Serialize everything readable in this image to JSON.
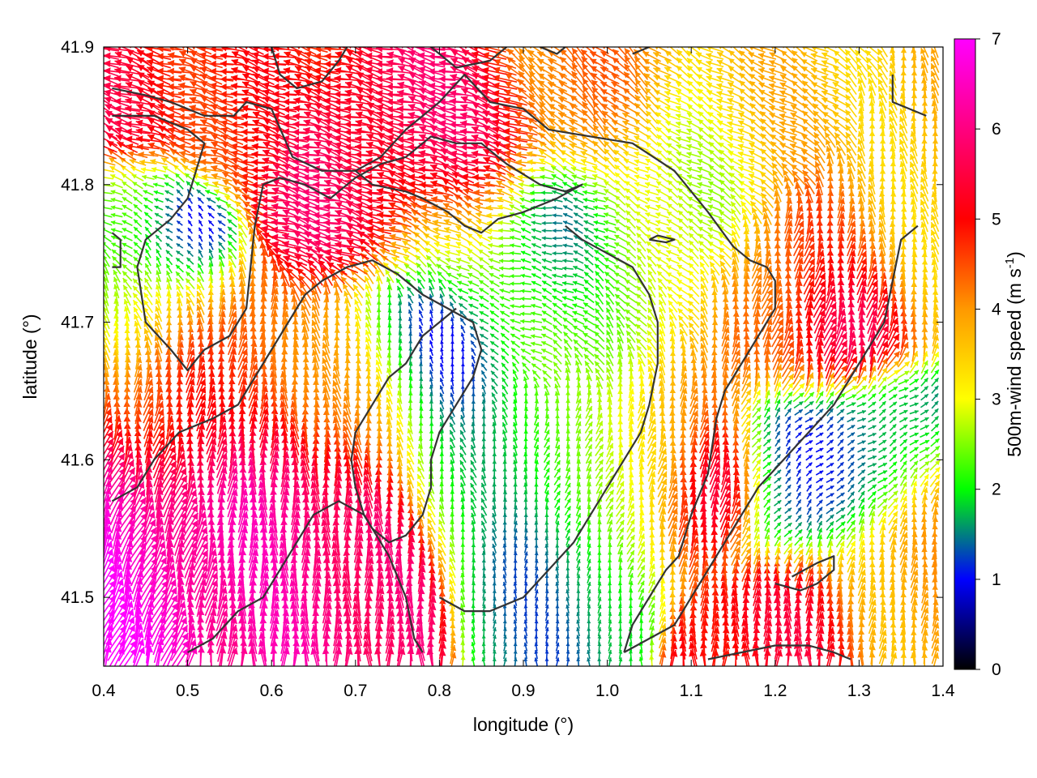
{
  "chart_data": {
    "type": "vector-field",
    "xlabel": "longitude (°)",
    "ylabel": "latitude (°)",
    "xlim": [
      0.4,
      1.4
    ],
    "ylim": [
      41.45,
      41.9
    ],
    "xticks": [
      "0.4",
      "0.5",
      "0.6",
      "0.7",
      "0.8",
      "0.9",
      "1.0",
      "1.1",
      "1.2",
      "1.3",
      "1.4"
    ],
    "yticks": [
      "41.5",
      "41.6",
      "41.7",
      "41.8",
      "41.9"
    ],
    "colorbar": {
      "label": "500m-wind speed (m s",
      "label_superscript": "-1",
      "label_suffix": ")",
      "range": [
        0,
        7
      ],
      "ticks": [
        "0",
        "1",
        "2",
        "3",
        "4",
        "5",
        "6",
        "7"
      ],
      "palette": [
        "#000000",
        "#0000ff",
        "#00ff00",
        "#ffff00",
        "#ff9900",
        "#ff0000",
        "#ff00ff"
      ]
    },
    "wind_field_description": "Gridded 500m wind vectors, colored by speed; arrows point generally northward in the south/east, westward in the north.",
    "contours": [
      [
        [
          0.41,
          41.87
        ],
        [
          0.45,
          41.865
        ],
        [
          0.48,
          41.86
        ],
        [
          0.52,
          41.85
        ],
        [
          0.555,
          41.85
        ],
        [
          0.57,
          41.86
        ],
        [
          0.6,
          41.855
        ],
        [
          0.625,
          41.82
        ],
        [
          0.66,
          41.81
        ],
        [
          0.7,
          41.81
        ],
        [
          0.73,
          41.82
        ],
        [
          0.76,
          41.84
        ],
        [
          0.8,
          41.86
        ],
        [
          0.83,
          41.88
        ],
        [
          0.86,
          41.86
        ],
        [
          0.9,
          41.855
        ],
        [
          0.93,
          41.84
        ],
        [
          0.98,
          41.835
        ],
        [
          1.03,
          41.83
        ],
        [
          1.08,
          41.81
        ],
        [
          1.12,
          41.78
        ],
        [
          1.15,
          41.755
        ],
        [
          1.17,
          41.745
        ],
        [
          1.19,
          41.74
        ],
        [
          1.2,
          41.73
        ],
        [
          1.2,
          41.71
        ],
        [
          1.18,
          41.69
        ],
        [
          1.16,
          41.67
        ],
        [
          1.14,
          41.65
        ],
        [
          1.13,
          41.63
        ],
        [
          1.12,
          41.59
        ],
        [
          1.1,
          41.56
        ],
        [
          1.085,
          41.53
        ],
        [
          1.07,
          41.52
        ],
        [
          1.05,
          41.5
        ],
        [
          1.03,
          41.48
        ],
        [
          1.02,
          41.46
        ]
      ],
      [
        [
          0.41,
          41.85
        ],
        [
          0.46,
          41.85
        ],
        [
          0.5,
          41.84
        ],
        [
          0.52,
          41.83
        ],
        [
          0.5,
          41.79
        ],
        [
          0.48,
          41.775
        ],
        [
          0.45,
          41.76
        ],
        [
          0.44,
          41.74
        ],
        [
          0.45,
          41.7
        ],
        [
          0.48,
          41.68
        ],
        [
          0.5,
          41.665
        ],
        [
          0.52,
          41.68
        ],
        [
          0.55,
          41.69
        ],
        [
          0.57,
          41.71
        ],
        [
          0.575,
          41.74
        ],
        [
          0.58,
          41.77
        ],
        [
          0.59,
          41.8
        ],
        [
          0.61,
          41.805
        ],
        [
          0.64,
          41.8
        ],
        [
          0.67,
          41.79
        ],
        [
          0.7,
          41.805
        ],
        [
          0.73,
          41.815
        ],
        [
          0.76,
          41.82
        ],
        [
          0.79,
          41.835
        ],
        [
          0.82,
          41.83
        ],
        [
          0.85,
          41.83
        ],
        [
          0.88,
          41.815
        ],
        [
          0.92,
          41.8
        ],
        [
          0.95,
          41.795
        ],
        [
          0.97,
          41.8
        ],
        [
          0.94,
          41.79
        ],
        [
          0.9,
          41.78
        ],
        [
          0.87,
          41.775
        ],
        [
          0.85,
          41.765
        ],
        [
          0.83,
          41.77
        ],
        [
          0.81,
          41.78
        ],
        [
          0.78,
          41.79
        ],
        [
          0.76,
          41.795
        ],
        [
          0.72,
          41.8
        ],
        [
          0.7,
          41.81
        ]
      ],
      [
        [
          0.41,
          41.57
        ],
        [
          0.44,
          41.58
        ],
        [
          0.46,
          41.6
        ],
        [
          0.49,
          41.62
        ],
        [
          0.53,
          41.63
        ],
        [
          0.56,
          41.64
        ],
        [
          0.58,
          41.66
        ],
        [
          0.6,
          41.68
        ],
        [
          0.62,
          41.7
        ],
        [
          0.64,
          41.72
        ],
        [
          0.66,
          41.73
        ],
        [
          0.69,
          41.74
        ],
        [
          0.72,
          41.745
        ],
        [
          0.75,
          41.735
        ],
        [
          0.78,
          41.72
        ],
        [
          0.81,
          41.71
        ],
        [
          0.84,
          41.7
        ],
        [
          0.85,
          41.68
        ],
        [
          0.84,
          41.66
        ],
        [
          0.82,
          41.64
        ],
        [
          0.8,
          41.62
        ],
        [
          0.79,
          41.6
        ],
        [
          0.79,
          41.58
        ],
        [
          0.78,
          41.56
        ],
        [
          0.76,
          41.545
        ],
        [
          0.74,
          41.54
        ],
        [
          0.72,
          41.55
        ],
        [
          0.71,
          41.56
        ],
        [
          0.7,
          41.58
        ],
        [
          0.695,
          41.6
        ],
        [
          0.7,
          41.62
        ],
        [
          0.72,
          41.64
        ],
        [
          0.74,
          41.66
        ],
        [
          0.76,
          41.67
        ],
        [
          0.78,
          41.69
        ],
        [
          0.8,
          41.7
        ],
        [
          0.82,
          41.71
        ]
      ],
      [
        [
          0.8,
          41.5
        ],
        [
          0.83,
          41.49
        ],
        [
          0.86,
          41.49
        ],
        [
          0.9,
          41.5
        ],
        [
          0.93,
          41.52
        ],
        [
          0.96,
          41.54
        ],
        [
          0.98,
          41.56
        ],
        [
          1.0,
          41.58
        ],
        [
          1.02,
          41.6
        ],
        [
          1.04,
          41.62
        ],
        [
          1.05,
          41.64
        ],
        [
          1.06,
          41.67
        ],
        [
          1.06,
          41.7
        ],
        [
          1.05,
          41.72
        ],
        [
          1.03,
          41.74
        ],
        [
          1.0,
          41.75
        ],
        [
          0.97,
          41.76
        ],
        [
          0.95,
          41.77
        ]
      ],
      [
        [
          0.5,
          41.46
        ],
        [
          0.53,
          41.47
        ],
        [
          0.56,
          41.49
        ],
        [
          0.59,
          41.5
        ],
        [
          0.62,
          41.53
        ],
        [
          0.65,
          41.56
        ],
        [
          0.68,
          41.57
        ],
        [
          0.71,
          41.56
        ],
        [
          0.74,
          41.53
        ],
        [
          0.76,
          41.5
        ],
        [
          0.77,
          41.47
        ],
        [
          0.78,
          41.46
        ]
      ],
      [
        [
          1.02,
          41.46
        ],
        [
          1.05,
          41.47
        ],
        [
          1.08,
          41.48
        ],
        [
          1.1,
          41.5
        ],
        [
          1.12,
          41.52
        ],
        [
          1.15,
          41.55
        ],
        [
          1.18,
          41.58
        ],
        [
          1.21,
          41.6
        ],
        [
          1.24,
          41.62
        ],
        [
          1.27,
          41.64
        ],
        [
          1.29,
          41.66
        ],
        [
          1.31,
          41.68
        ],
        [
          1.33,
          41.7
        ],
        [
          1.34,
          41.73
        ],
        [
          1.35,
          41.76
        ],
        [
          1.37,
          41.77
        ]
      ],
      [
        [
          1.2,
          41.51
        ],
        [
          1.23,
          41.505
        ],
        [
          1.25,
          41.51
        ],
        [
          1.27,
          41.52
        ],
        [
          1.27,
          41.53
        ],
        [
          1.25,
          41.525
        ],
        [
          1.22,
          41.515
        ]
      ],
      [
        [
          1.12,
          41.455
        ],
        [
          1.16,
          41.46
        ],
        [
          1.2,
          41.465
        ],
        [
          1.24,
          41.465
        ],
        [
          1.27,
          41.46
        ],
        [
          1.29,
          41.455
        ]
      ],
      [
        [
          0.6,
          41.9
        ],
        [
          0.61,
          41.88
        ],
        [
          0.63,
          41.87
        ],
        [
          0.66,
          41.875
        ],
        [
          0.68,
          41.89
        ],
        [
          0.69,
          41.9
        ]
      ],
      [
        [
          0.79,
          41.9
        ],
        [
          0.82,
          41.885
        ],
        [
          0.86,
          41.89
        ],
        [
          0.88,
          41.9
        ]
      ],
      [
        [
          0.92,
          41.9
        ],
        [
          0.94,
          41.895
        ],
        [
          0.95,
          41.9
        ]
      ],
      [
        [
          1.03,
          41.895
        ],
        [
          1.05,
          41.9
        ]
      ],
      [
        [
          1.34,
          41.88
        ],
        [
          1.34,
          41.86
        ],
        [
          1.36,
          41.855
        ],
        [
          1.38,
          41.85
        ]
      ],
      [
        [
          1.05,
          41.76
        ],
        [
          1.07,
          41.758
        ],
        [
          1.08,
          41.76
        ],
        [
          1.06,
          41.763
        ],
        [
          1.05,
          41.76
        ]
      ],
      [
        [
          0.41,
          41.765
        ],
        [
          0.42,
          41.76
        ],
        [
          0.42,
          41.74
        ],
        [
          0.41,
          41.74
        ]
      ]
    ],
    "regions": [
      {
        "lon": 0.41,
        "lat": 41.5,
        "speed": 6.9,
        "dir": 20,
        "sigma": 0.05
      },
      {
        "lon": 0.45,
        "lat": 41.55,
        "speed": 6.5,
        "dir": 25,
        "sigma": 0.05
      },
      {
        "lon": 0.6,
        "lat": 41.55,
        "speed": 6.2,
        "dir": 0,
        "sigma": 0.06
      },
      {
        "lon": 0.68,
        "lat": 41.53,
        "speed": 6.0,
        "dir": 0,
        "sigma": 0.05
      },
      {
        "lon": 0.5,
        "lat": 41.65,
        "speed": 4.6,
        "dir": 10,
        "sigma": 0.06
      },
      {
        "lon": 0.7,
        "lat": 41.65,
        "speed": 4.2,
        "dir": -10,
        "sigma": 0.05
      },
      {
        "lon": 0.45,
        "lat": 41.72,
        "speed": 2.6,
        "dir": -30,
        "sigma": 0.04
      },
      {
        "lon": 0.43,
        "lat": 41.78,
        "speed": 2.2,
        "dir": -70,
        "sigma": 0.03
      },
      {
        "lon": 0.48,
        "lat": 41.76,
        "speed": 0.6,
        "dir": -45,
        "sigma": 0.03
      },
      {
        "lon": 0.42,
        "lat": 41.87,
        "speed": 5.3,
        "dir": -70,
        "sigma": 0.04
      },
      {
        "lon": 0.55,
        "lat": 41.88,
        "speed": 4.8,
        "dir": -75,
        "sigma": 0.05
      },
      {
        "lon": 0.72,
        "lat": 41.8,
        "speed": 5.6,
        "dir": -75,
        "sigma": 0.05
      },
      {
        "lon": 0.82,
        "lat": 41.82,
        "speed": 5.6,
        "dir": -75,
        "sigma": 0.05
      },
      {
        "lon": 0.82,
        "lat": 41.76,
        "speed": 2.8,
        "dir": -60,
        "sigma": 0.04
      },
      {
        "lon": 0.78,
        "lat": 41.68,
        "speed": 0.8,
        "dir": 0,
        "sigma": 0.05
      },
      {
        "lon": 0.85,
        "lat": 41.6,
        "speed": 2.0,
        "dir": -20,
        "sigma": 0.05
      },
      {
        "lon": 0.9,
        "lat": 41.72,
        "speed": 2.0,
        "dir": -80,
        "sigma": 0.05
      },
      {
        "lon": 0.92,
        "lat": 41.76,
        "speed": 1.4,
        "dir": -80,
        "sigma": 0.04
      },
      {
        "lon": 0.92,
        "lat": 41.52,
        "speed": 1.5,
        "dir": 0,
        "sigma": 0.04
      },
      {
        "lon": 0.96,
        "lat": 41.6,
        "speed": 1.8,
        "dir": 30,
        "sigma": 0.05
      },
      {
        "lon": 1.0,
        "lat": 41.7,
        "speed": 2.6,
        "dir": -40,
        "sigma": 0.05
      },
      {
        "lon": 0.98,
        "lat": 41.88,
        "speed": 4.2,
        "dir": -50,
        "sigma": 0.05
      },
      {
        "lon": 1.05,
        "lat": 41.62,
        "speed": 4.0,
        "dir": 10,
        "sigma": 0.05
      },
      {
        "lon": 1.13,
        "lat": 41.58,
        "speed": 5.8,
        "dir": 5,
        "sigma": 0.03
      },
      {
        "lon": 1.08,
        "lat": 41.8,
        "speed": 2.6,
        "dir": -60,
        "sigma": 0.05
      },
      {
        "lon": 1.18,
        "lat": 41.86,
        "speed": 3.6,
        "dir": -60,
        "sigma": 0.05
      },
      {
        "lon": 1.24,
        "lat": 41.73,
        "speed": 4.5,
        "dir": 15,
        "sigma": 0.05
      },
      {
        "lon": 1.27,
        "lat": 41.7,
        "speed": 5.9,
        "dir": 15,
        "sigma": 0.03
      },
      {
        "lon": 1.22,
        "lat": 41.58,
        "speed": 1.2,
        "dir": 40,
        "sigma": 0.04
      },
      {
        "lon": 1.3,
        "lat": 41.6,
        "speed": 1.4,
        "dir": 60,
        "sigma": 0.04
      },
      {
        "lon": 1.22,
        "lat": 41.48,
        "speed": 5.2,
        "dir": 0,
        "sigma": 0.04
      },
      {
        "lon": 1.35,
        "lat": 41.52,
        "speed": 3.8,
        "dir": 5,
        "sigma": 0.05
      },
      {
        "lon": 1.37,
        "lat": 41.8,
        "speed": 3.6,
        "dir": -10,
        "sigma": 0.05
      }
    ]
  }
}
